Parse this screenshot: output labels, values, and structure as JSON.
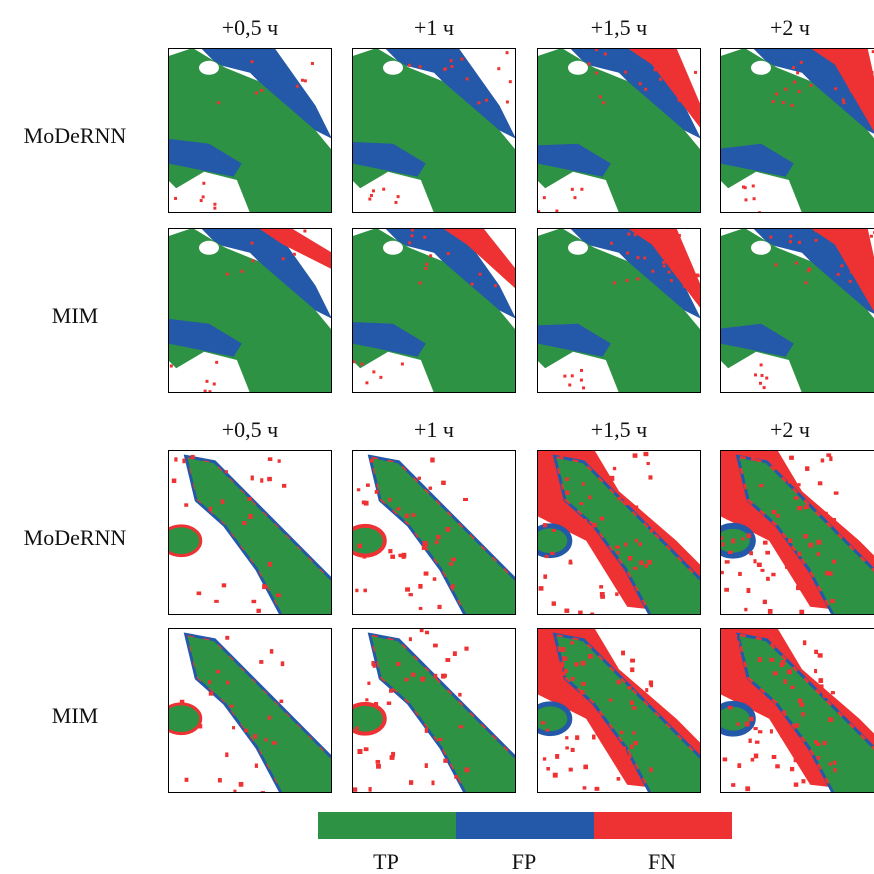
{
  "panels": [
    {
      "columns": [
        "+0,5 ч",
        "+1 ч",
        "+1,5 ч",
        "+2 ч"
      ],
      "rows": [
        "MoDeRNN",
        "MIM"
      ]
    },
    {
      "columns": [
        "+0,5 ч",
        "+1 ч",
        "+1,5 ч",
        "+2 ч"
      ],
      "rows": [
        "MoDeRNN",
        "MIM"
      ]
    }
  ],
  "legend": [
    {
      "label": "TP",
      "color": "#2e9245"
    },
    {
      "label": "FP",
      "color": "#2458a8"
    },
    {
      "label": "FN",
      "color": "#ee3233"
    }
  ]
}
